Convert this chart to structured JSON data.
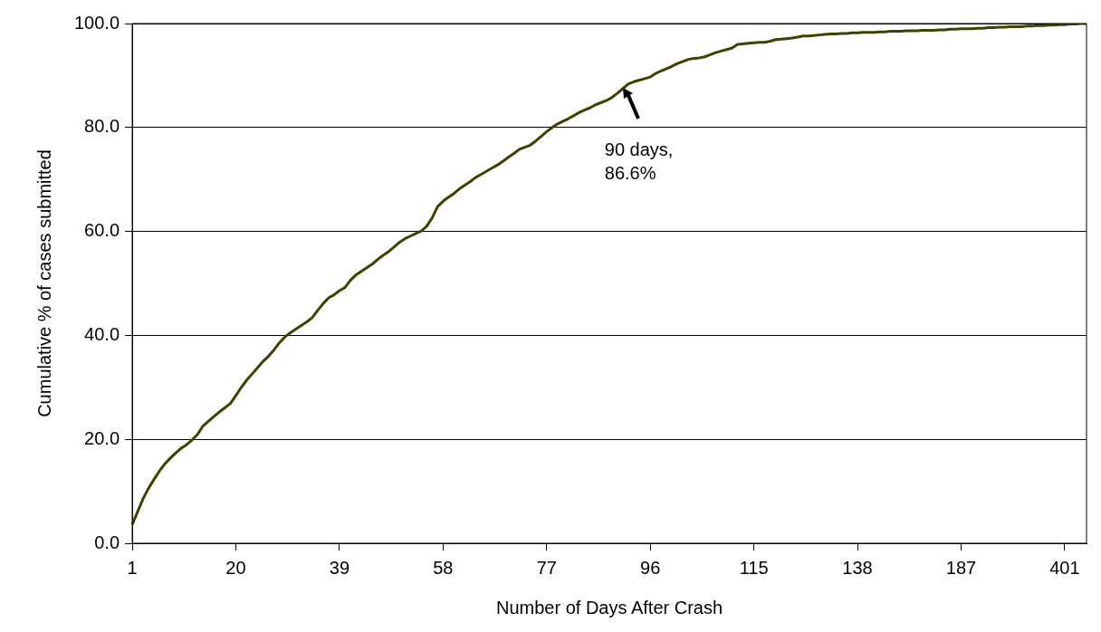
{
  "chart_data": {
    "type": "line",
    "xlabel": "Number of Days After Crash",
    "ylabel": "Cumulative % of cases submitted",
    "categories": [
      "1",
      null,
      null,
      null,
      null,
      null,
      null,
      null,
      null,
      null,
      null,
      null,
      null,
      null,
      null,
      null,
      null,
      null,
      null,
      "20",
      null,
      null,
      null,
      null,
      null,
      null,
      null,
      null,
      null,
      null,
      null,
      null,
      null,
      null,
      null,
      null,
      null,
      null,
      "39",
      null,
      null,
      null,
      null,
      null,
      null,
      null,
      null,
      null,
      null,
      null,
      null,
      null,
      null,
      null,
      null,
      null,
      null,
      "58",
      null,
      null,
      null,
      null,
      null,
      null,
      null,
      null,
      null,
      null,
      null,
      null,
      null,
      null,
      null,
      null,
      null,
      null,
      "77",
      null,
      null,
      null,
      null,
      null,
      null,
      null,
      null,
      null,
      null,
      null,
      null,
      null,
      null,
      null,
      null,
      null,
      null,
      "96",
      null,
      null,
      null,
      null,
      null,
      null,
      null,
      null,
      null,
      null,
      null,
      null,
      null,
      null,
      null,
      null,
      null,
      null,
      "115",
      null,
      null,
      null,
      null,
      null,
      null,
      null,
      null,
      null,
      null,
      null,
      null,
      null,
      null,
      null,
      null,
      null,
      null,
      "138",
      null,
      null,
      null,
      null,
      null,
      null,
      null,
      null,
      null,
      null,
      null,
      null,
      null,
      null,
      null,
      null,
      null,
      null,
      "187",
      null,
      null,
      null,
      null,
      null,
      null,
      null,
      null,
      null,
      null,
      null,
      null,
      null,
      null,
      null,
      null,
      null,
      null,
      "401",
      null,
      null,
      null,
      null
    ],
    "series": [
      {
        "color": "#404000",
        "values": [
          3.6,
          6.1,
          8.6,
          10.6,
          12.3,
          13.9,
          15.3,
          16.4,
          17.4,
          18.3,
          19.0,
          19.9,
          21.0,
          22.6,
          23.5,
          24.4,
          25.3,
          26.1,
          26.9,
          28.4,
          30.0,
          31.4,
          32.6,
          33.8,
          35.0,
          36.0,
          37.2,
          38.6,
          39.7,
          40.5,
          41.2,
          41.9,
          42.6,
          43.4,
          44.8,
          46.1,
          47.2,
          47.8,
          48.6,
          49.2,
          50.6,
          51.6,
          52.3,
          53.0,
          53.7,
          54.6,
          55.4,
          56.1,
          57.0,
          57.9,
          58.6,
          59.1,
          59.6,
          60.1,
          61.0,
          62.6,
          64.8,
          65.8,
          66.6,
          67.3,
          68.2,
          68.9,
          69.6,
          70.4,
          71.0,
          71.6,
          72.2,
          72.8,
          73.5,
          74.3,
          75.0,
          75.8,
          76.2,
          76.6,
          77.4,
          78.3,
          79.2,
          80.0,
          80.7,
          81.2,
          81.7,
          82.3,
          82.9,
          83.4,
          83.8,
          84.4,
          84.8,
          85.2,
          85.8,
          86.6,
          87.5,
          88.4,
          88.8,
          89.1,
          89.4,
          89.7,
          90.4,
          90.9,
          91.3,
          91.8,
          92.3,
          92.7,
          93.1,
          93.3,
          93.4,
          93.6,
          94.0,
          94.4,
          94.7,
          95.0,
          95.3,
          96.0,
          96.1,
          96.2,
          96.3,
          96.4,
          96.4,
          96.6,
          96.9,
          97.0,
          97.1,
          97.2,
          97.4,
          97.6,
          97.6,
          97.7,
          97.8,
          97.9,
          98.0,
          98.0,
          98.1,
          98.1,
          98.2,
          98.2,
          98.3,
          98.3,
          98.3,
          98.4,
          98.4,
          98.5,
          98.5,
          98.5,
          98.6,
          98.6,
          98.6,
          98.7,
          98.7,
          98.7,
          98.8,
          98.8,
          98.9,
          98.9,
          99.0,
          99.0,
          99.0,
          99.1,
          99.1,
          99.2,
          99.2,
          99.3,
          99.3,
          99.4,
          99.4,
          99.4,
          99.5,
          99.5,
          99.6,
          99.6,
          99.7,
          99.7,
          99.8,
          99.8,
          99.9,
          99.9,
          100.0,
          100.0
        ]
      }
    ],
    "ylim": [
      0,
      100
    ],
    "yticks": [
      {
        "value": 0,
        "label": "0.0"
      },
      {
        "value": 20,
        "label": "20.0"
      },
      {
        "value": 40,
        "label": "40.0"
      },
      {
        "value": 60,
        "label": "60.0"
      },
      {
        "value": 80,
        "label": "80.0"
      },
      {
        "value": 100,
        "label": "100.0"
      }
    ],
    "grid": "y",
    "legend": false,
    "marker": "none",
    "line_style": "solid",
    "annotations": [
      "90 days,\n86.6%"
    ]
  }
}
